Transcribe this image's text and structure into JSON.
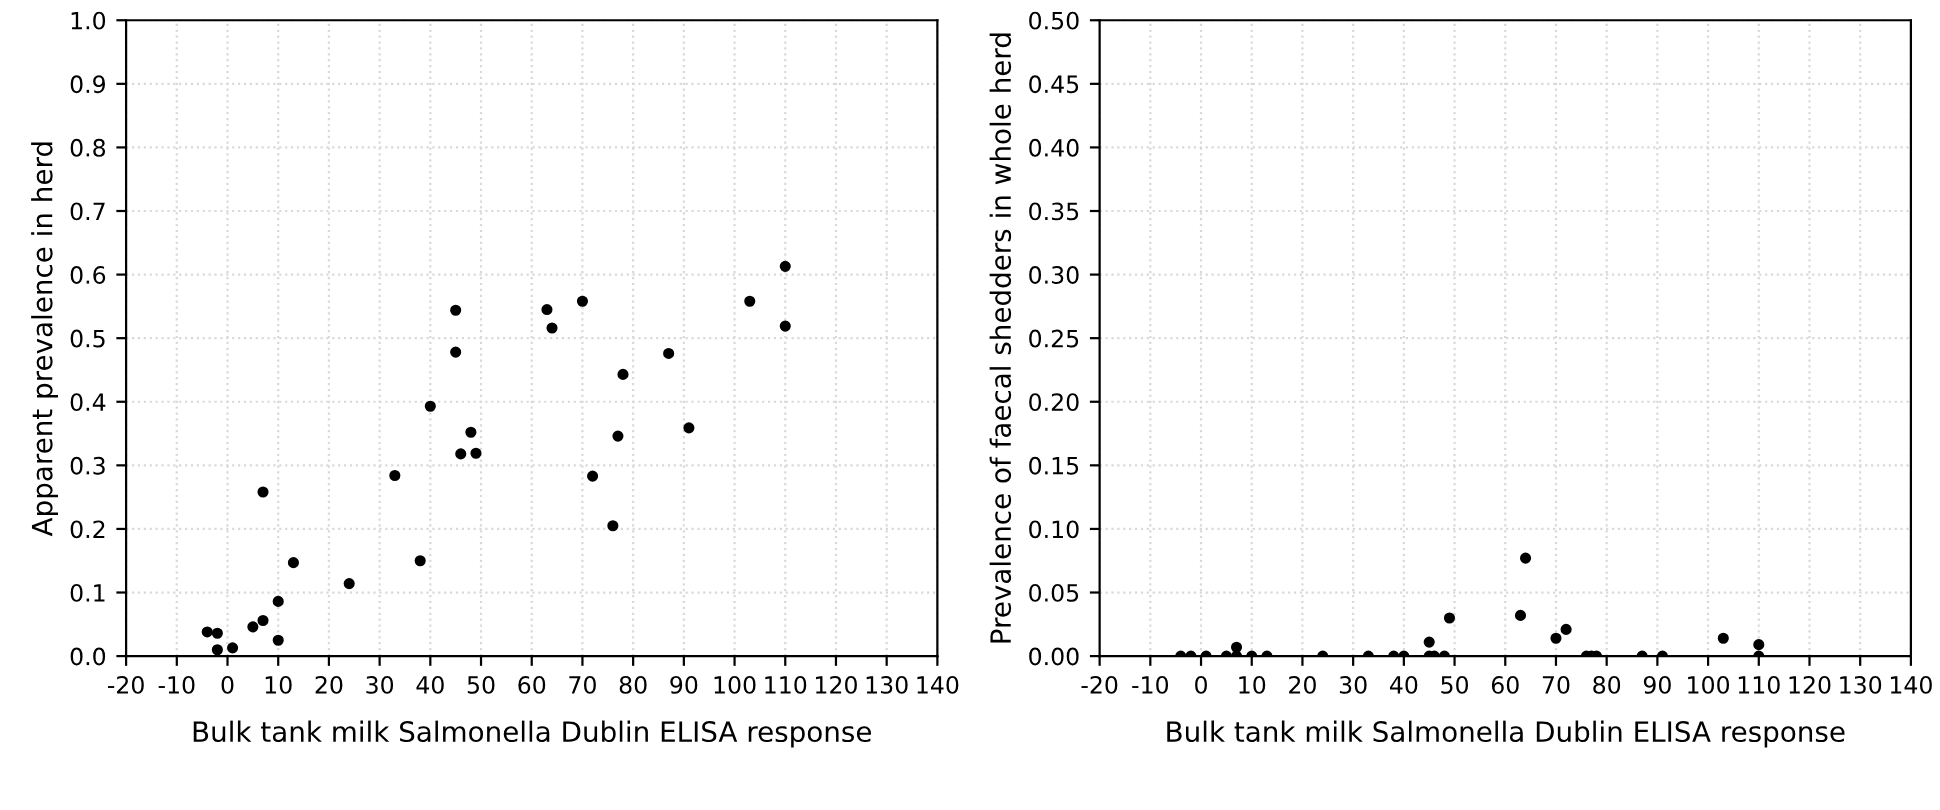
{
  "chart_data": [
    {
      "type": "scatter",
      "xlabel": "Bulk tank milk Salmonella Dublin ELISA response",
      "ylabel": "Apparent prevalence in herd",
      "marker": "circle",
      "grid": true,
      "legend": false,
      "xlim": [
        -20,
        140
      ],
      "xticks": [
        -20,
        -10,
        0,
        10,
        20,
        30,
        40,
        50,
        60,
        70,
        80,
        90,
        100,
        110,
        120,
        130,
        140
      ],
      "ylim": [
        0,
        1.0
      ],
      "yticks": [
        {
          "value": 0,
          "label": "0.0"
        },
        {
          "value": 0.1,
          "label": "0.1"
        },
        {
          "value": 0.2,
          "label": "0.2"
        },
        {
          "value": 0.3,
          "label": "0.3"
        },
        {
          "value": 0.4,
          "label": "0.4"
        },
        {
          "value": 0.5,
          "label": "0.5"
        },
        {
          "value": 0.6,
          "label": "0.6"
        },
        {
          "value": 0.7,
          "label": "0.7"
        },
        {
          "value": 0.8,
          "label": "0.8"
        },
        {
          "value": 0.9,
          "label": "0.9"
        },
        {
          "value": 1.0,
          "label": "1.0"
        }
      ],
      "series": [
        {
          "color": "#000000",
          "x": [
            -4,
            -2,
            -2,
            1,
            5,
            7,
            10,
            10,
            7,
            13,
            24,
            33,
            38,
            40,
            45,
            45,
            48,
            46,
            49,
            63,
            64,
            70,
            72,
            76,
            77,
            78,
            87,
            91,
            103,
            110,
            110
          ],
          "values": [
            0.038,
            0.036,
            0.01,
            0.013,
            0.046,
            0.056,
            0.086,
            0.025,
            0.258,
            0.147,
            0.114,
            0.284,
            0.15,
            0.393,
            0.544,
            0.478,
            0.352,
            0.318,
            0.319,
            0.545,
            0.516,
            0.558,
            0.283,
            0.205,
            0.346,
            0.443,
            0.476,
            0.359,
            0.558,
            0.613,
            0.519
          ]
        }
      ]
    },
    {
      "type": "scatter",
      "xlabel": "Bulk tank milk Salmonella Dublin ELISA response",
      "ylabel": "Prevalence of faecal shedders in whole herd",
      "marker": "circle",
      "grid": true,
      "legend": false,
      "xlim": [
        -20,
        140
      ],
      "xticks": [
        -20,
        -10,
        0,
        10,
        20,
        30,
        40,
        50,
        60,
        70,
        80,
        90,
        100,
        110,
        120,
        130,
        140
      ],
      "ylim": [
        0,
        0.5
      ],
      "yticks": [
        {
          "value": 0,
          "label": "0.00"
        },
        {
          "value": 0.05,
          "label": "0.05"
        },
        {
          "value": 0.1,
          "label": "0.10"
        },
        {
          "value": 0.15,
          "label": "0.15"
        },
        {
          "value": 0.2,
          "label": "0.20"
        },
        {
          "value": 0.25,
          "label": "0.25"
        },
        {
          "value": 0.3,
          "label": "0.30"
        },
        {
          "value": 0.35,
          "label": "0.35"
        },
        {
          "value": 0.4,
          "label": "0.40"
        },
        {
          "value": 0.45,
          "label": "0.45"
        },
        {
          "value": 0.5,
          "label": "0.50"
        }
      ],
      "series": [
        {
          "color": "#000000",
          "x": [
            -4,
            -2,
            1,
            5,
            7,
            7,
            10,
            13,
            24,
            33,
            38,
            40,
            45,
            45,
            46,
            48,
            49,
            63,
            64,
            70,
            72,
            76,
            77,
            78,
            87,
            91,
            103,
            110,
            110
          ],
          "values": [
            0,
            0,
            0,
            0,
            0.007,
            0,
            0,
            0,
            0,
            0,
            0,
            0,
            0.011,
            0,
            0,
            0,
            0.03,
            0.032,
            0.077,
            0.014,
            0.021,
            0,
            0,
            0,
            0,
            0,
            0.014,
            0.009,
            0
          ]
        }
      ]
    }
  ]
}
